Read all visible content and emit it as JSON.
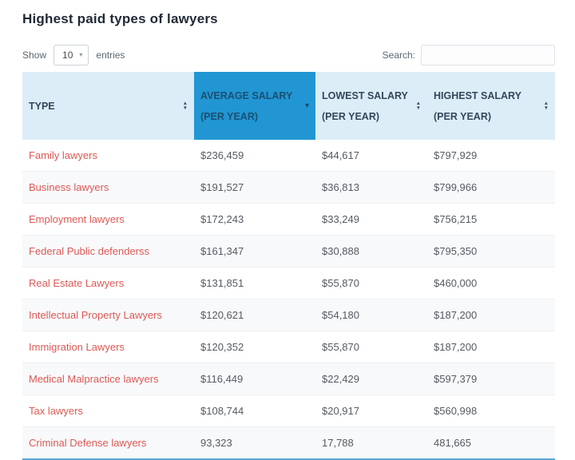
{
  "page": {
    "title": "Highest paid types of lawyers"
  },
  "controls": {
    "show_label": "Show",
    "entries_value": "10",
    "entries_label": "entries",
    "search_label": "Search:",
    "search_value": ""
  },
  "table": {
    "columns": [
      {
        "id": "type",
        "label": "TYPE",
        "sort": "both",
        "active": false
      },
      {
        "id": "average-salary",
        "label": "AVERAGE SALARY (PER YEAR)",
        "sort": "desc",
        "active": true
      },
      {
        "id": "lowest-salary",
        "label": "LOWEST SALARY (PER YEAR)",
        "sort": "both",
        "active": false
      },
      {
        "id": "highest-salary",
        "label": "HIGHEST SALARY (PER YEAR)",
        "sort": "both",
        "active": false
      }
    ],
    "rows": [
      [
        "Family lawyers",
        "$236,459",
        "$44,617",
        "$797,929"
      ],
      [
        "Business lawyers",
        "$191,527",
        "$36,813",
        "$799,966"
      ],
      [
        "Employment lawyers",
        "$172,243",
        "$33,249",
        "$756,215"
      ],
      [
        "Federal Public defenderss",
        "$161,347",
        "$30,888",
        "$795,350"
      ],
      [
        "Real Estate Lawyers",
        "$131,851",
        "$55,870",
        "$460,000"
      ],
      [
        "Intellectual Property Lawyers",
        "$120,621",
        "$54,180",
        "$187,200"
      ],
      [
        "Immigration Lawyers",
        "$120,352",
        "$55,870",
        "$187,200"
      ],
      [
        "Medical Malpractice lawyers",
        "$116,449",
        "$22,429",
        "$597,379"
      ],
      [
        "Tax lawyers",
        "$108,744",
        "$20,917",
        "$560,998"
      ],
      [
        "Criminal Defense lawyers",
        "93,323",
        "17,788",
        "481,665"
      ]
    ]
  },
  "colors": {
    "accent_blue": "#2196d3",
    "header_bg": "#dcedf7",
    "header_text": "#33475b",
    "type_text": "#dc5a55",
    "value_text": "#555b62",
    "title_text": "#1f2a36"
  }
}
